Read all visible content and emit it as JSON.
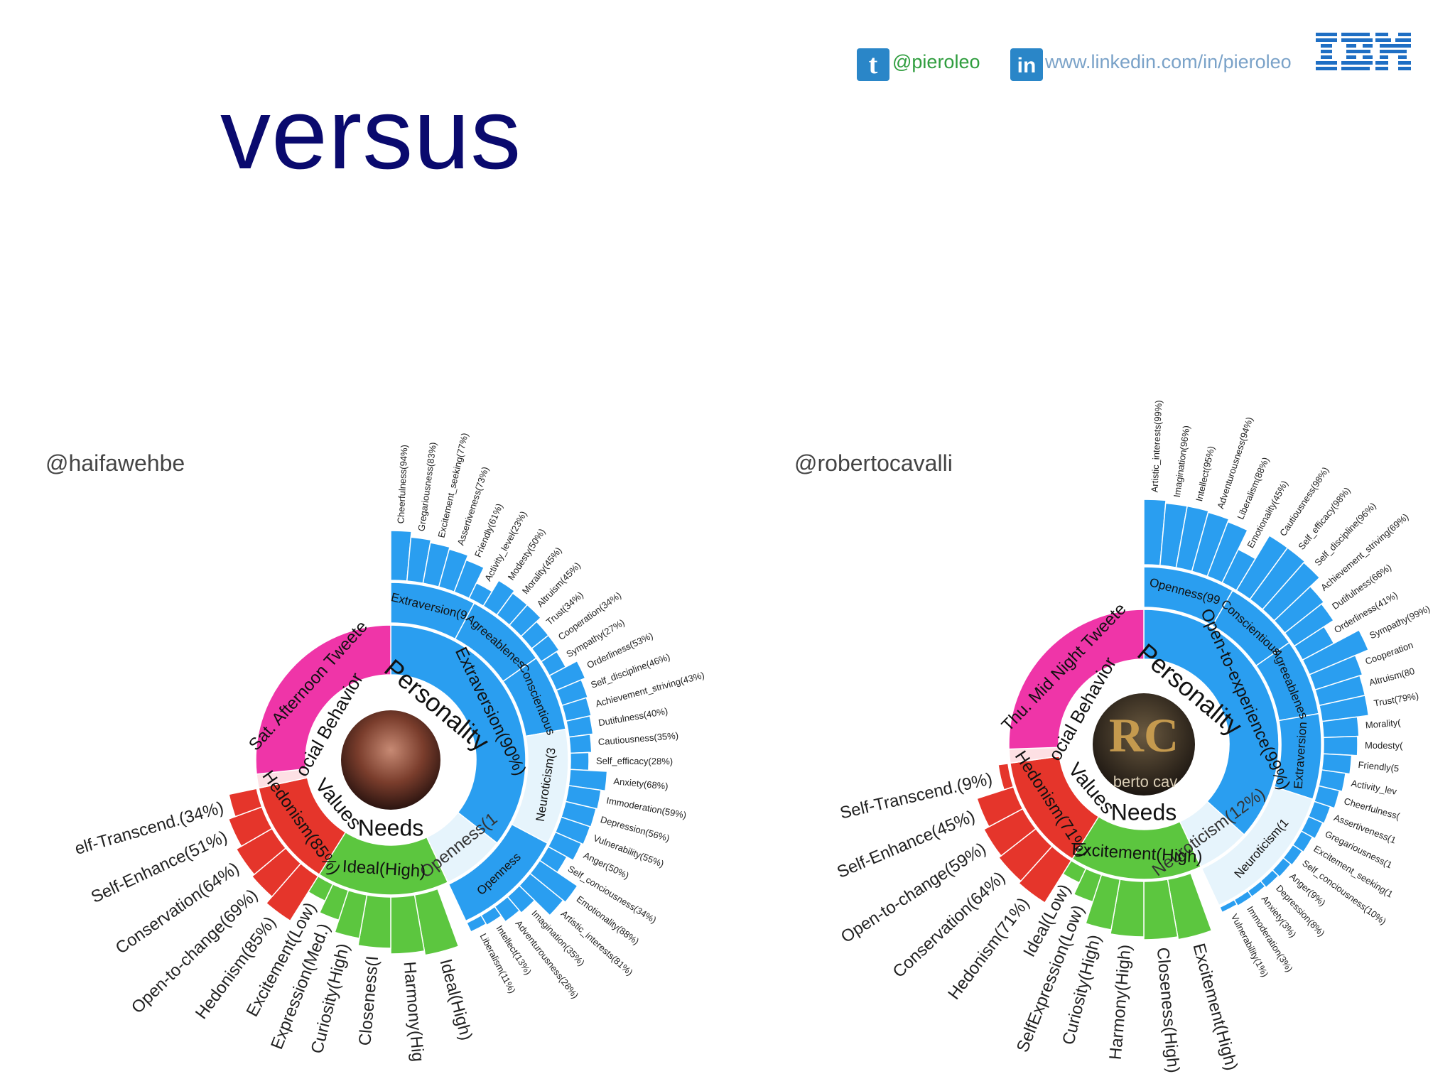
{
  "header": {
    "twitter_handle": "@pieroleo",
    "linkedin_url": "www.linkedin.com/in/pieroleo",
    "brand": "IBM"
  },
  "title": "versus",
  "colors": {
    "title": "#0a0a6e",
    "personality": "#2a9ef0",
    "needs": "#5cc63f",
    "values": "#e5352b",
    "social": "#ef35a8",
    "light_blue": "#e6f4fc",
    "light_pink": "#fde0e4"
  },
  "profiles": [
    {
      "handle": "@haifawehbe",
      "inner": {
        "personality": "Personality",
        "needs": "Needs",
        "values": "Values",
        "social": "ocial Behavior"
      },
      "middle": [
        {
          "label": "Extraversion(90%)",
          "group": "personality"
        },
        {
          "label": "Openness(1",
          "group": "light_blue"
        },
        {
          "label": "Ideal(High)",
          "group": "needs"
        },
        {
          "label": "Hedonism(85%)",
          "group": "values"
        },
        {
          "label": "",
          "group": "light_pink"
        },
        {
          "label": "Sat. Afternoon Tweete",
          "group": "social"
        }
      ],
      "big5": [
        "Extraversion(9",
        "Agreeablenes",
        "Conscientious",
        "Neuroticism(3",
        "Openness"
      ],
      "facets": [
        "Cheerfulness(94%)",
        "Gregariousness(83%)",
        "Excitement_seeking(77%)",
        "Assertiveness(73%)",
        "Friendly(61%)",
        "Activity_level(23%)",
        "Modesty(50%)",
        "Morality(45%)",
        "Altruism(45%)",
        "Trust(34%)",
        "Cooperation(34%)",
        "Sympathy(27%)",
        "Orderliness(53%)",
        "Self_discipline(46%)",
        "Achievement_striving(43%)",
        "Dutifulness(40%)",
        "Cautiousness(35%)",
        "Self_efficacy(28%)",
        "Anxiety(68%)",
        "Immoderation(59%)",
        "Depression(56%)",
        "Vulnerability(55%)",
        "Anger(50%)",
        "Self_conciousness(34%)",
        "Emotionality(88%)",
        "Artistic_interests(81%)",
        "Imagination(35%)",
        "Adventurousness(28%)",
        "Intellect(13%)",
        "Liberalism(11%)"
      ],
      "needs_outer": [
        "Ideal(High)",
        "Harmony(Hig",
        "Closeness(I",
        "Curiosity(High)",
        "Expression(Med.)",
        "Excitement(Low)"
      ],
      "values_outer": [
        "Hedonism(85%)",
        "Open-to-change(69%)",
        "Conservation(64%)",
        "Self-Enhance(51%)",
        "elf-Transcend.(34%)"
      ]
    },
    {
      "handle": "@robertocavalli",
      "avatar_text": "berto cav",
      "inner": {
        "personality": "Personality",
        "needs": "Needs",
        "values": "Values",
        "social": "ocial Behavior"
      },
      "middle": [
        {
          "label": "Open-to-experience(99%)",
          "group": "personality"
        },
        {
          "label": "Neuroticism(12%)",
          "group": "light_blue"
        },
        {
          "label": "Excitement(High)",
          "group": "needs"
        },
        {
          "label": "Hedonism(71%)",
          "group": "values"
        },
        {
          "label": "",
          "group": "light_pink"
        },
        {
          "label": "Thu. Mid Night Tweete",
          "group": "social"
        }
      ],
      "big5": [
        "Openness(99",
        "Conscientious",
        "Agreeablenes",
        "Extraversion",
        "Neuroticism(1"
      ],
      "facets": [
        "Artistic_interests(99%)",
        "Imagination(96%)",
        "Intellect(95%)",
        "Adventurousness(94%)",
        "Liberalism(88%)",
        "Emotionality(45%)",
        "Cautiousness(98%)",
        "Self_efficacy(98%)",
        "Self_discipline(96%)",
        "Achievement_striving(69%)",
        "Dutifulness(66%)",
        "Orderliness(41%)",
        "Sympathy(99%)",
        "Cooperation",
        "Altruism(80",
        "Trust(79%)",
        "Morality(",
        "Modesty(",
        "Friendly(5",
        "Activity_lev",
        "Cheerfulness(",
        "Assertiveness(1",
        "Gregariousness(1",
        "Excitement_seeking(1",
        "Self_conciousness(10%)",
        "Anger(9%)",
        "Depression(8%)",
        "Anxiety(3%)",
        "Immoderation(3%)",
        "Vulnerability(1%)"
      ],
      "needs_outer": [
        "Excitement(High)",
        "Closeness(High)",
        "Harmony(High)",
        "Curiosity(High)",
        "SelfExpression(Low)",
        "Ideal(Low)"
      ],
      "values_outer": [
        "Hedonism(71%)",
        "Conservation(64%)",
        "Open-to-change(59%)",
        "Self-Enhance(45%)",
        "Self-Transcend.(9%)"
      ]
    }
  ]
}
